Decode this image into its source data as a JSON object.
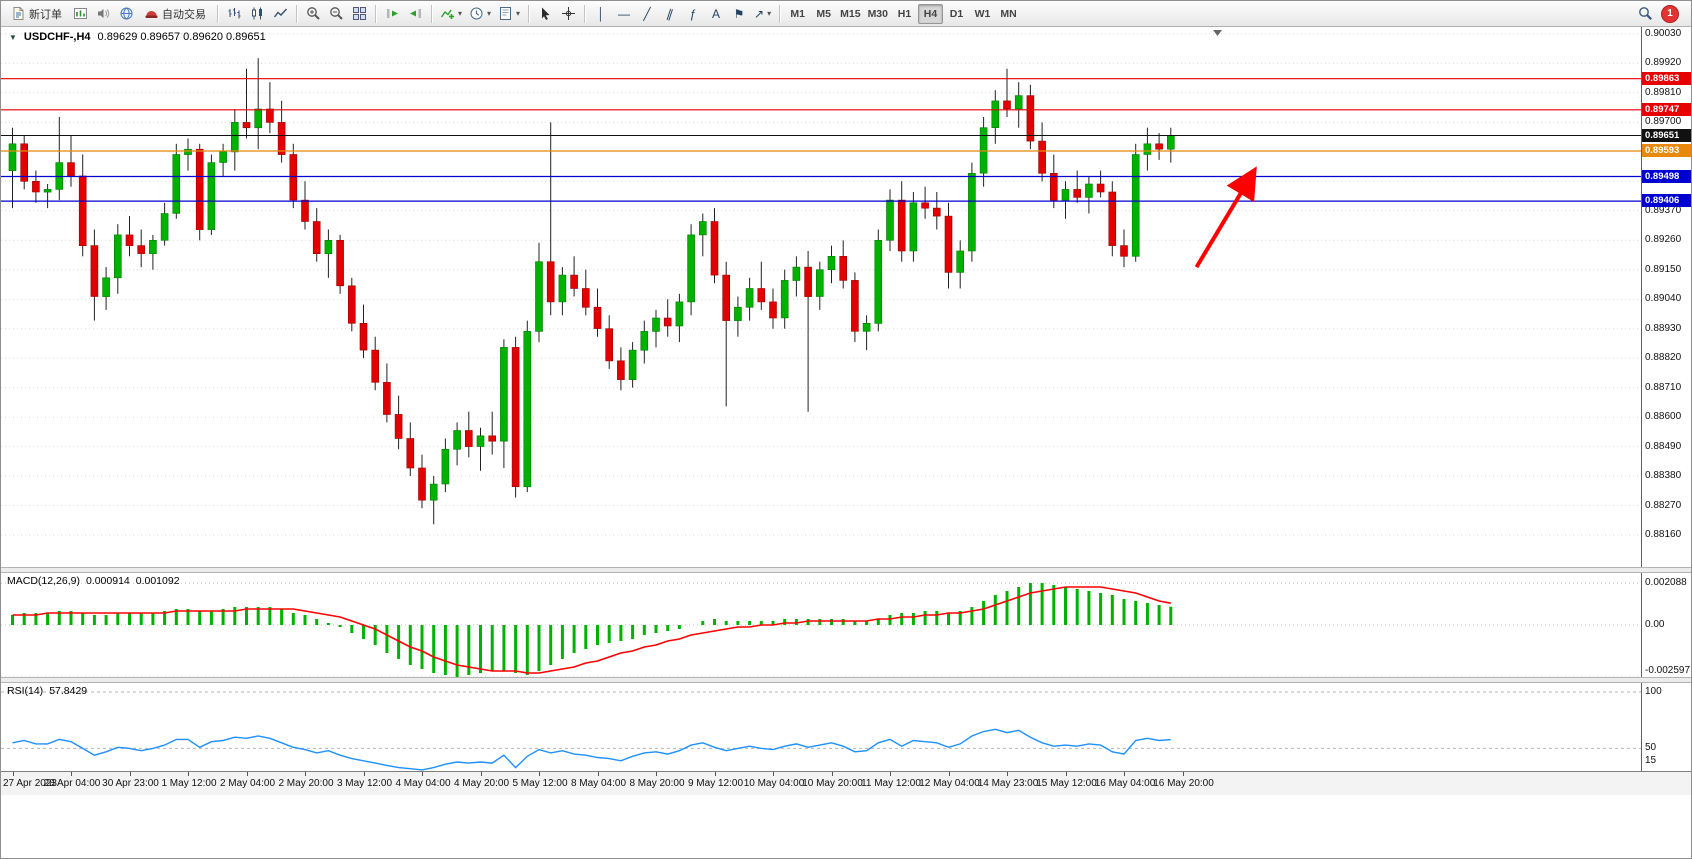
{
  "toolbar": {
    "new_order": "新订单",
    "autotrading": "自动交易",
    "timeframes": [
      "M1",
      "M5",
      "M15",
      "M30",
      "H1",
      "H4",
      "D1",
      "W1",
      "MN"
    ],
    "active_timeframe": "H4",
    "notification_count": "1"
  },
  "icon_glyphs": {
    "title_caret": "▼",
    "caret": "▾",
    "vline": "│",
    "hline": "—",
    "trendline": "╱",
    "channel": "∥",
    "fibonacci": "ƒ",
    "text_tool": "A",
    "label_tool": "⚑",
    "arrows_tool": "↗"
  },
  "colors": {
    "up": "#00b200",
    "down": "#e30000",
    "wick": "#222222",
    "macd_histogram": "#00b200",
    "macd_signal": "#ff0000",
    "rsi_line": "#1e90ff",
    "grid": "#d9d9d9",
    "level_red": "#e60000",
    "level_blue": "#0000d0",
    "level_orange": "#e8890c",
    "current_price": "#111111",
    "annotation_arrow": "#ff0000"
  },
  "chart": {
    "symbol_period": "USDCHF-,H4",
    "ohlc": "0.89629 0.89657 0.89620 0.89651"
  },
  "chart_data": {
    "type": "candlestick",
    "symbol": "USDCHF-",
    "timeframe": "H4",
    "ylim": [
      0.8816,
      0.9003
    ],
    "price_axis_labels": [
      "0.90030",
      "0.89920",
      "0.89810",
      "0.89700",
      "0.89590",
      "0.89480",
      "0.89370",
      "0.89260",
      "0.89150",
      "0.89040",
      "0.88930",
      "0.88820",
      "0.88710",
      "0.88600",
      "0.88490",
      "0.88380",
      "0.88270",
      "0.88160"
    ],
    "x_labels": [
      "27 Apr 2023",
      "28 Apr 04:00",
      "30 Apr 23:00",
      "1 May 12:00",
      "2 May 04:00",
      "2 May 20:00",
      "3 May 12:00",
      "4 May 04:00",
      "4 May 20:00",
      "5 May 12:00",
      "8 May 04:00",
      "8 May 20:00",
      "9 May 12:00",
      "10 May 04:00",
      "10 May 20:00",
      "11 May 12:00",
      "12 May 04:00",
      "14 May 23:00",
      "15 May 12:00",
      "16 May 04:00",
      "16 May 20:00"
    ],
    "levels": [
      {
        "price": 0.89863,
        "label": "0.89863",
        "color": "#e60000",
        "current": false
      },
      {
        "price": 0.89747,
        "label": "0.89747",
        "color": "#e60000",
        "current": false
      },
      {
        "price": 0.89651,
        "label": "0.89651",
        "color": "#111111",
        "current": true
      },
      {
        "price": 0.89593,
        "label": "0.89593",
        "color": "#e8890c",
        "current": false
      },
      {
        "price": 0.89498,
        "label": "0.89498",
        "color": "#0000d0",
        "current": false
      },
      {
        "price": 0.89406,
        "label": "0.89406",
        "color": "#0000d0",
        "current": false
      }
    ],
    "candles_ohlc": [
      [
        0.8952,
        0.8968,
        0.8938,
        0.8962
      ],
      [
        0.8962,
        0.8965,
        0.8945,
        0.8948
      ],
      [
        0.8948,
        0.8952,
        0.894,
        0.8944
      ],
      [
        0.8944,
        0.8947,
        0.8938,
        0.8945
      ],
      [
        0.8945,
        0.8972,
        0.8941,
        0.8955
      ],
      [
        0.8955,
        0.8965,
        0.8946,
        0.895
      ],
      [
        0.895,
        0.8958,
        0.892,
        0.8924
      ],
      [
        0.8924,
        0.893,
        0.8896,
        0.8905
      ],
      [
        0.8905,
        0.8916,
        0.89,
        0.8912
      ],
      [
        0.8912,
        0.8932,
        0.8906,
        0.8928
      ],
      [
        0.8928,
        0.8935,
        0.892,
        0.8924
      ],
      [
        0.8924,
        0.893,
        0.8916,
        0.8921
      ],
      [
        0.8921,
        0.8928,
        0.8915,
        0.8926
      ],
      [
        0.8926,
        0.894,
        0.8924,
        0.8936
      ],
      [
        0.8936,
        0.8962,
        0.8934,
        0.8958
      ],
      [
        0.8958,
        0.8964,
        0.8952,
        0.896
      ],
      [
        0.896,
        0.8962,
        0.8926,
        0.893
      ],
      [
        0.893,
        0.8958,
        0.8928,
        0.8955
      ],
      [
        0.8955,
        0.8962,
        0.895,
        0.8959
      ],
      [
        0.8959,
        0.8975,
        0.8952,
        0.897
      ],
      [
        0.897,
        0.899,
        0.8964,
        0.8968
      ],
      [
        0.8968,
        0.8994,
        0.896,
        0.8975
      ],
      [
        0.8975,
        0.8985,
        0.8966,
        0.897
      ],
      [
        0.897,
        0.8978,
        0.8955,
        0.8958
      ],
      [
        0.8958,
        0.8962,
        0.8938,
        0.8941
      ],
      [
        0.8941,
        0.8948,
        0.893,
        0.8933
      ],
      [
        0.8933,
        0.8938,
        0.8918,
        0.8921
      ],
      [
        0.8921,
        0.893,
        0.8912,
        0.8926
      ],
      [
        0.8926,
        0.8928,
        0.8906,
        0.8909
      ],
      [
        0.8909,
        0.8912,
        0.8892,
        0.8895
      ],
      [
        0.8895,
        0.8902,
        0.8882,
        0.8885
      ],
      [
        0.8885,
        0.889,
        0.887,
        0.8873
      ],
      [
        0.8873,
        0.888,
        0.8858,
        0.8861
      ],
      [
        0.8861,
        0.8868,
        0.8848,
        0.8852
      ],
      [
        0.8852,
        0.8858,
        0.8838,
        0.8841
      ],
      [
        0.8841,
        0.8846,
        0.8826,
        0.8829
      ],
      [
        0.8829,
        0.8838,
        0.882,
        0.8835
      ],
      [
        0.8835,
        0.8852,
        0.8832,
        0.8848
      ],
      [
        0.8848,
        0.8858,
        0.8842,
        0.8855
      ],
      [
        0.8855,
        0.8862,
        0.8845,
        0.8849
      ],
      [
        0.8849,
        0.8856,
        0.884,
        0.8853
      ],
      [
        0.8853,
        0.8862,
        0.8846,
        0.8851
      ],
      [
        0.8851,
        0.8889,
        0.8841,
        0.8886
      ],
      [
        0.8886,
        0.889,
        0.883,
        0.8834
      ],
      [
        0.8834,
        0.8896,
        0.8832,
        0.8892
      ],
      [
        0.8892,
        0.8925,
        0.8888,
        0.8918
      ],
      [
        0.8918,
        0.897,
        0.8898,
        0.8903
      ],
      [
        0.8903,
        0.8916,
        0.8898,
        0.8913
      ],
      [
        0.8913,
        0.892,
        0.8905,
        0.8908
      ],
      [
        0.8908,
        0.8915,
        0.8898,
        0.8901
      ],
      [
        0.8901,
        0.8908,
        0.889,
        0.8893
      ],
      [
        0.8893,
        0.8898,
        0.8878,
        0.8881
      ],
      [
        0.8881,
        0.8886,
        0.887,
        0.8874
      ],
      [
        0.8874,
        0.8888,
        0.8871,
        0.8885
      ],
      [
        0.8885,
        0.8896,
        0.888,
        0.8892
      ],
      [
        0.8892,
        0.89,
        0.8886,
        0.8897
      ],
      [
        0.8897,
        0.8904,
        0.889,
        0.8894
      ],
      [
        0.8894,
        0.8906,
        0.8888,
        0.8903
      ],
      [
        0.8903,
        0.8932,
        0.8898,
        0.8928
      ],
      [
        0.8928,
        0.8936,
        0.892,
        0.8933
      ],
      [
        0.8933,
        0.8938,
        0.891,
        0.8913
      ],
      [
        0.8913,
        0.8918,
        0.8864,
        0.8896
      ],
      [
        0.8896,
        0.8905,
        0.889,
        0.8901
      ],
      [
        0.8901,
        0.8912,
        0.8896,
        0.8908
      ],
      [
        0.8908,
        0.8918,
        0.89,
        0.8903
      ],
      [
        0.8903,
        0.8908,
        0.8893,
        0.8897
      ],
      [
        0.8897,
        0.8915,
        0.8893,
        0.8911
      ],
      [
        0.8911,
        0.892,
        0.8905,
        0.8916
      ],
      [
        0.8916,
        0.8922,
        0.8862,
        0.8905
      ],
      [
        0.8905,
        0.8918,
        0.89,
        0.8915
      ],
      [
        0.8915,
        0.8924,
        0.891,
        0.892
      ],
      [
        0.892,
        0.8926,
        0.8908,
        0.8911
      ],
      [
        0.8911,
        0.8914,
        0.8888,
        0.8892
      ],
      [
        0.8892,
        0.8898,
        0.8885,
        0.8895
      ],
      [
        0.8895,
        0.893,
        0.8892,
        0.8926
      ],
      [
        0.8926,
        0.8945,
        0.8922,
        0.8941
      ],
      [
        0.8941,
        0.8948,
        0.8918,
        0.8922
      ],
      [
        0.8922,
        0.8944,
        0.8918,
        0.894
      ],
      [
        0.894,
        0.8946,
        0.8934,
        0.8938
      ],
      [
        0.8938,
        0.8944,
        0.893,
        0.8935
      ],
      [
        0.8935,
        0.894,
        0.8908,
        0.8914
      ],
      [
        0.8914,
        0.8926,
        0.8908,
        0.8922
      ],
      [
        0.8922,
        0.8955,
        0.8918,
        0.8951
      ],
      [
        0.8951,
        0.8972,
        0.8946,
        0.8968
      ],
      [
        0.8968,
        0.8982,
        0.8962,
        0.8978
      ],
      [
        0.8978,
        0.899,
        0.8972,
        0.8975
      ],
      [
        0.8975,
        0.8985,
        0.8968,
        0.898
      ],
      [
        0.898,
        0.8984,
        0.896,
        0.8963
      ],
      [
        0.8963,
        0.897,
        0.8948,
        0.8951
      ],
      [
        0.8951,
        0.8958,
        0.8938,
        0.8941
      ],
      [
        0.8941,
        0.8948,
        0.8934,
        0.8945
      ],
      [
        0.8945,
        0.8952,
        0.894,
        0.8942
      ],
      [
        0.8942,
        0.895,
        0.8936,
        0.8947
      ],
      [
        0.8947,
        0.8952,
        0.8942,
        0.8944
      ],
      [
        0.8944,
        0.8948,
        0.892,
        0.8924
      ],
      [
        0.8924,
        0.893,
        0.8916,
        0.892
      ],
      [
        0.892,
        0.8962,
        0.8918,
        0.8958
      ],
      [
        0.8958,
        0.8968,
        0.8952,
        0.8962
      ],
      [
        0.8962,
        0.8966,
        0.8956,
        0.896
      ],
      [
        0.896,
        0.8968,
        0.8955,
        0.89651
      ]
    ],
    "indicators": {
      "macd": {
        "label": "MACD(12,26,9)",
        "value_main": "0.000914",
        "value_signal": "0.001092",
        "axis": [
          {
            "label": "0.002088",
            "value": 0.002088
          },
          {
            "label": "0.00",
            "value": 0
          },
          {
            "label": "-0.002597",
            "value": -0.002597
          }
        ],
        "histogram": [
          0.0005,
          0.0006,
          0.0006,
          0.0006,
          0.0007,
          0.0007,
          0.0006,
          0.0005,
          0.0005,
          0.0006,
          0.0006,
          0.0006,
          0.0006,
          0.0007,
          0.0008,
          0.0008,
          0.0007,
          0.0007,
          0.0008,
          0.0009,
          0.0009,
          0.0009,
          0.0009,
          0.0008,
          0.0006,
          0.0005,
          0.0003,
          0.0001,
          -0.0001,
          -0.0004,
          -0.0007,
          -0.001,
          -0.0014,
          -0.0017,
          -0.002,
          -0.0022,
          -0.0024,
          -0.0025,
          -0.0026,
          -0.0025,
          -0.0024,
          -0.0023,
          -0.0023,
          -0.0024,
          -0.0025,
          -0.0023,
          -0.002,
          -0.0017,
          -0.0014,
          -0.0012,
          -0.001,
          -0.0009,
          -0.0008,
          -0.0007,
          -0.0005,
          -0.0004,
          -0.0003,
          -0.0002,
          0,
          0.0002,
          0.0003,
          0.0002,
          0.0002,
          0.0002,
          0.0002,
          0.0002,
          0.0003,
          0.0003,
          0.0003,
          0.0003,
          0.0003,
          0.0003,
          0.0002,
          0.0002,
          0.0003,
          0.0005,
          0.0006,
          0.0006,
          0.0007,
          0.0007,
          0.0006,
          0.0007,
          0.0009,
          0.0012,
          0.0015,
          0.0017,
          0.0019,
          0.0021,
          0.0021,
          0.002,
          0.0019,
          0.0018,
          0.0017,
          0.0016,
          0.0015,
          0.0013,
          0.0012,
          0.0011,
          0.001,
          0.000914
        ],
        "signal": [
          0.0005,
          0.0005,
          0.0005,
          0.0006,
          0.0006,
          0.0006,
          0.0006,
          0.0006,
          0.0006,
          0.0006,
          0.0006,
          0.0006,
          0.0006,
          0.0006,
          0.0007,
          0.0007,
          0.0007,
          0.0007,
          0.0007,
          0.0007,
          0.0008,
          0.0008,
          0.0008,
          0.0008,
          0.0008,
          0.0007,
          0.0006,
          0.0005,
          0.0004,
          0.0002,
          0,
          -0.0002,
          -0.0005,
          -0.0008,
          -0.0011,
          -0.0013,
          -0.0016,
          -0.0018,
          -0.002,
          -0.0021,
          -0.0022,
          -0.0023,
          -0.0023,
          -0.0023,
          -0.0024,
          -0.0024,
          -0.0023,
          -0.0022,
          -0.0021,
          -0.0019,
          -0.0018,
          -0.0016,
          -0.0014,
          -0.0013,
          -0.0011,
          -0.001,
          -0.0008,
          -0.0007,
          -0.0005,
          -0.0004,
          -0.0003,
          -0.0002,
          -0.0001,
          -0.0001,
          0,
          0,
          0.0001,
          0.0001,
          0.0002,
          0.0002,
          0.0002,
          0.0002,
          0.0002,
          0.0002,
          0.0003,
          0.0003,
          0.0004,
          0.0004,
          0.0005,
          0.0005,
          0.0006,
          0.0006,
          0.0007,
          0.0008,
          0.001,
          0.0012,
          0.0014,
          0.0016,
          0.0017,
          0.0018,
          0.0019,
          0.0019,
          0.0019,
          0.0019,
          0.0018,
          0.0017,
          0.0016,
          0.0014,
          0.0012,
          0.001092
        ]
      },
      "rsi": {
        "label": "RSI(14)",
        "value": "57.8429",
        "axis": [
          {
            "label": "100",
            "value": 100
          },
          {
            "label": "50",
            "value": 50
          },
          {
            "label": "15",
            "value": 15
          }
        ],
        "level_lines": [
          100,
          50
        ],
        "values": [
          55,
          57,
          54,
          54,
          58,
          56,
          50,
          44,
          47,
          51,
          50,
          48,
          50,
          53,
          58,
          58,
          51,
          56,
          57,
          60,
          59,
          61,
          59,
          55,
          51,
          49,
          46,
          48,
          44,
          41,
          39,
          37,
          35,
          33,
          32,
          31,
          33,
          36,
          38,
          37,
          38,
          37,
          44,
          33,
          43,
          49,
          46,
          48,
          45,
          44,
          42,
          41,
          39,
          43,
          46,
          47,
          45,
          48,
          53,
          55,
          51,
          48,
          50,
          52,
          50,
          49,
          52,
          54,
          51,
          53,
          55,
          52,
          47,
          48,
          55,
          58,
          52,
          57,
          56,
          55,
          51,
          54,
          61,
          65,
          67,
          64,
          66,
          60,
          55,
          52,
          53,
          52,
          54,
          53,
          47,
          45,
          57,
          59,
          57,
          57.8
        ]
      }
    },
    "annotation": {
      "type": "arrow",
      "color": "#ff0000",
      "x1_index": 101.5,
      "price1": 0.8916,
      "x2_index": 106.3,
      "price2": 0.8951
    }
  }
}
